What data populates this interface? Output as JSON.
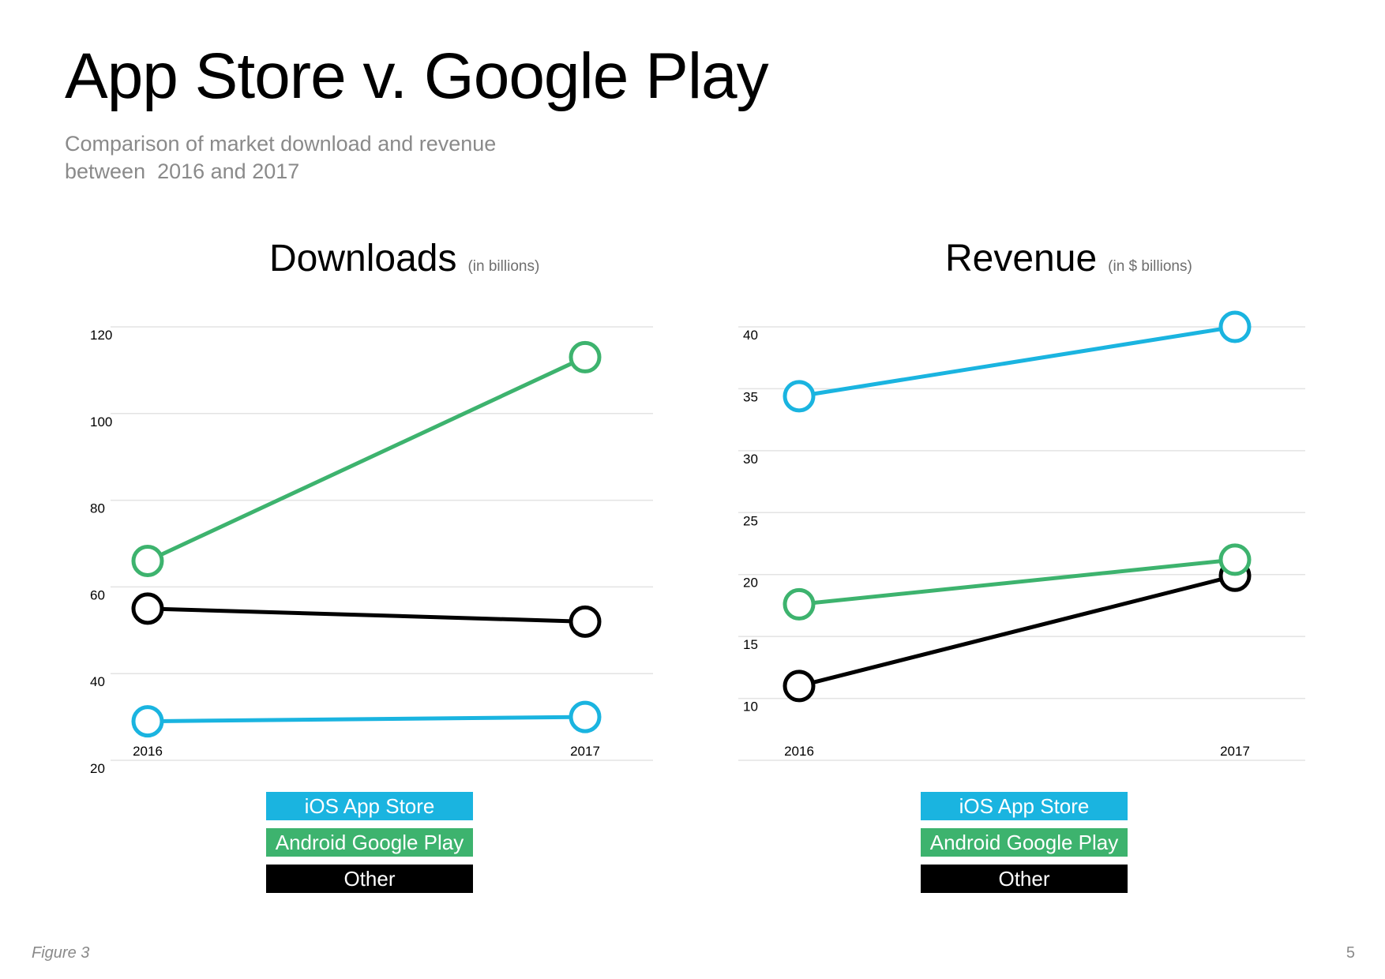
{
  "page": {
    "title": "App Store v. Google Play",
    "subtitle_lines": [
      "Comparison of market download and revenue",
      "between  2016 and 2017"
    ],
    "footer_left": "Figure 3",
    "page_number": "5"
  },
  "colors": {
    "ios": "#1ab4e0",
    "android": "#3db36e",
    "other": "#000000",
    "gridline": "#e3e3e3"
  },
  "chart_data": [
    {
      "type": "line",
      "title": "Downloads",
      "unit": "(in billions)",
      "x": [
        "2016",
        "2017"
      ],
      "yticks": [
        20,
        40,
        60,
        80,
        100,
        120
      ],
      "ylim": [
        20,
        120
      ],
      "grid": true,
      "legend_position": "bottom-center",
      "series": [
        {
          "name": "iOS App Store",
          "values": [
            29,
            30
          ]
        },
        {
          "name": "Android Google Play",
          "values": [
            66,
            113
          ]
        },
        {
          "name": "Other",
          "values": [
            55,
            52
          ]
        }
      ]
    },
    {
      "type": "line",
      "title": "Revenue",
      "unit": "(in $ billions)",
      "x": [
        "2016",
        "2017"
      ],
      "yticks": [
        10,
        15,
        20,
        25,
        30,
        35,
        40
      ],
      "ylim": [
        5,
        40
      ],
      "grid": true,
      "legend_position": "bottom-center",
      "series": [
        {
          "name": "iOS App Store",
          "values": [
            34.4,
            40
          ]
        },
        {
          "name": "Android Google Play",
          "values": [
            17.6,
            21.2
          ]
        },
        {
          "name": "Other",
          "values": [
            11,
            19.9
          ]
        }
      ]
    }
  ]
}
